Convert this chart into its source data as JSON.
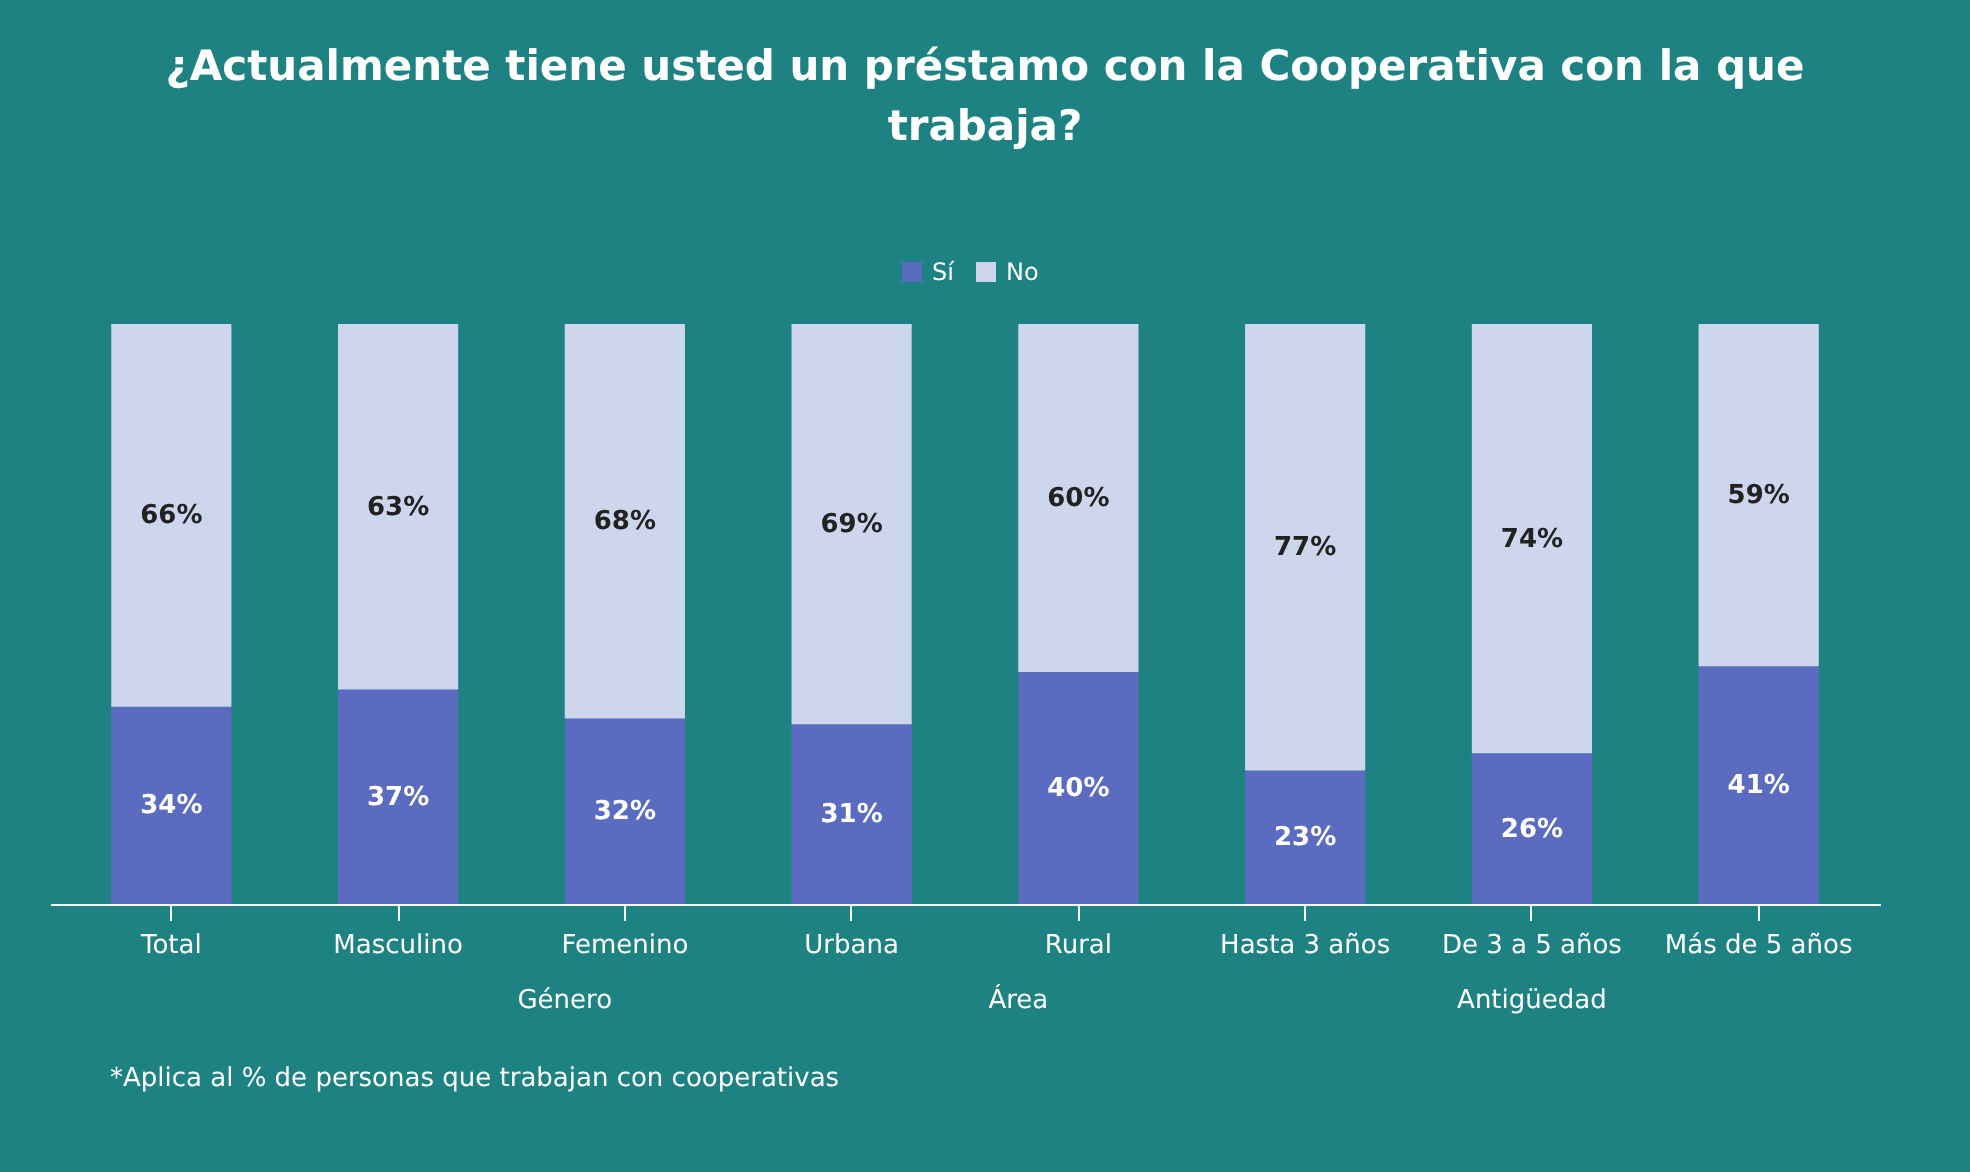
{
  "chart_data": {
    "type": "bar",
    "title": "¿Actualmente tiene usted un préstamo con la Cooperativa con la que trabaja?",
    "categories": [
      "Total",
      "Masculino",
      "Femenino",
      "Urbana",
      "Rural",
      "Hasta 3 años",
      "De 3 a 5 años",
      "Más de 5 años"
    ],
    "series": [
      {
        "name": "Sí",
        "color": "#5b6cc0",
        "values": [
          34,
          37,
          32,
          31,
          40,
          23,
          26,
          41
        ],
        "value_labels": [
          "34%",
          "37%",
          "32%",
          "31%",
          "40%",
          "23%",
          "26%",
          "41%"
        ]
      },
      {
        "name": "No",
        "color": "#cdd6ec",
        "values": [
          66,
          63,
          68,
          69,
          60,
          77,
          74,
          59
        ],
        "value_labels": [
          "66%",
          "63%",
          "68%",
          "69%",
          "60%",
          "77%",
          "74%",
          "59%"
        ]
      }
    ],
    "stacked": true,
    "legend": "top",
    "annotations": [
      "Género",
      "Área",
      "Antigüedad",
      "*Aplica al % de personas que trabajan con cooperativas"
    ]
  }
}
